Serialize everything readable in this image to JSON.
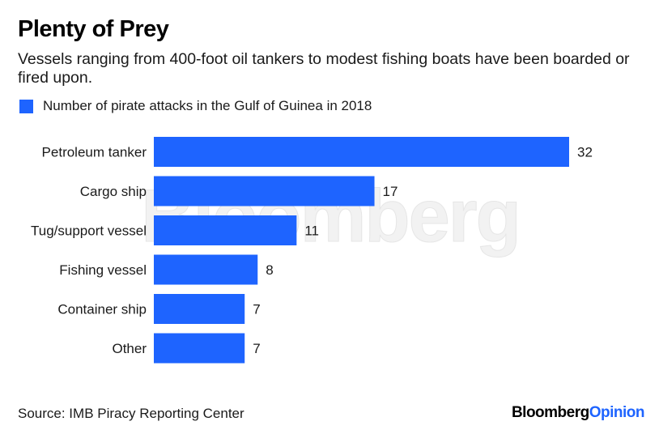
{
  "title": "Plenty of Prey",
  "subtitle": "Vessels ranging from 400-foot oil tankers to modest fishing boats have been boarded or fired upon.",
  "legend": {
    "label": "Number of pirate attacks in the Gulf of Guinea in 2018"
  },
  "watermark": "Bloomberg",
  "source": "Source: IMB Piracy Reporting Center",
  "brand": {
    "part1": "Bloomberg",
    "part2": "Opinion"
  },
  "colors": {
    "bar": "#1e64ff",
    "brand_accent": "#1e64ff"
  },
  "chart_data": {
    "type": "bar",
    "orientation": "horizontal",
    "title": "Plenty of Prey",
    "series": [
      {
        "name": "Number of pirate attacks in the Gulf of Guinea in 2018",
        "values": [
          32,
          17,
          11,
          8,
          7,
          7
        ]
      }
    ],
    "categories": [
      "Petroleum tanker",
      "Cargo ship",
      "Tug/support vessel",
      "Fishing vessel",
      "Container ship",
      "Other"
    ],
    "values": [
      32,
      17,
      11,
      8,
      7,
      7
    ],
    "xlim": [
      0,
      32
    ],
    "xlabel": "",
    "ylabel": "",
    "grid": false,
    "legend_position": "top-left"
  }
}
